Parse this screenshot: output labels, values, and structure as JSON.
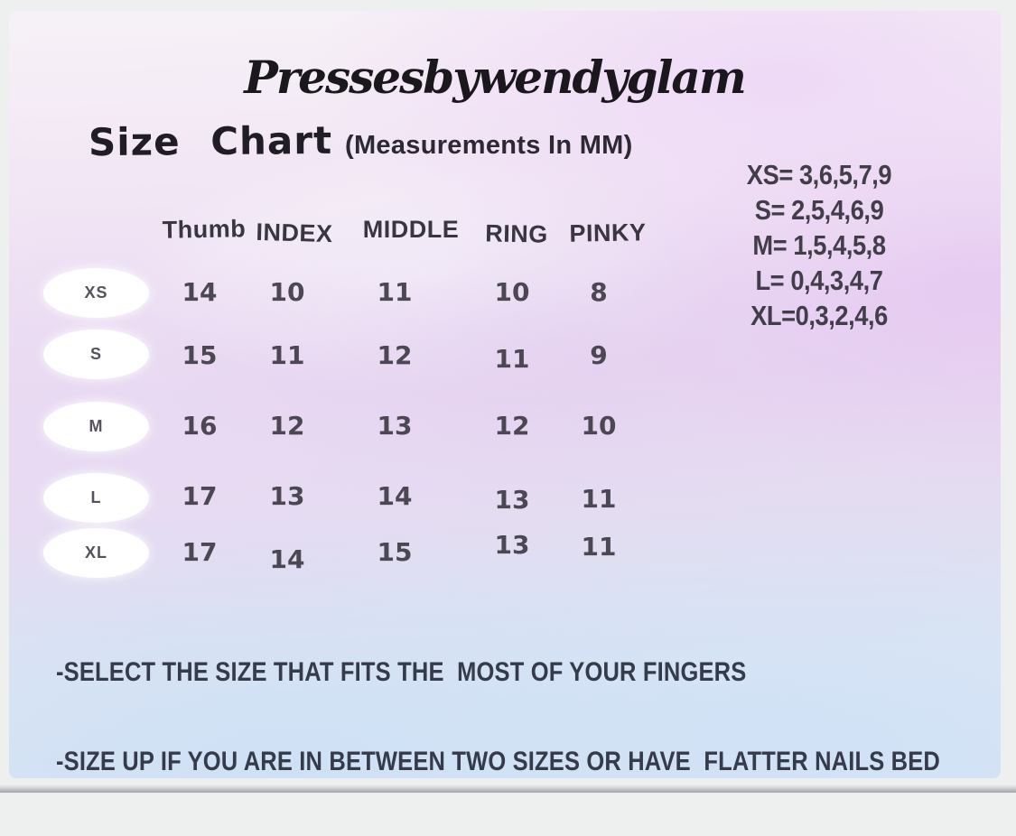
{
  "brand": "Pressesbywendyglam",
  "heading": "Size Chart",
  "subtitle": "(Measurements In MM)",
  "size_codes": [
    "XS= 3,6,5,7,9",
    "S= 2,5,4,6,9",
    "M= 1,5,4,5,8",
    "L= 0,4,3,4,7",
    "XL=0,3,2,4,6"
  ],
  "chart_data": {
    "type": "table",
    "title": "Size Chart (Measurements In MM)",
    "units": "MM",
    "columns": [
      "Thumb",
      "INDEX",
      "MIDDLE",
      "RING",
      "PINKY"
    ],
    "row_labels": [
      "XS",
      "S",
      "M",
      "L",
      "XL"
    ],
    "rows": [
      {
        "size": "XS",
        "values": [
          14,
          10,
          11,
          10,
          8
        ]
      },
      {
        "size": "S",
        "values": [
          15,
          11,
          12,
          11,
          9
        ]
      },
      {
        "size": "M",
        "values": [
          16,
          12,
          13,
          12,
          10
        ]
      },
      {
        "size": "L",
        "values": [
          17,
          13,
          14,
          13,
          11
        ]
      },
      {
        "size": "XL",
        "values": [
          17,
          14,
          15,
          13,
          11
        ]
      }
    ]
  },
  "notes": [
    "-SELECT THE SIZE THAT FITS THE  MOST OF YOUR FINGERS",
    "-SIZE UP IF YOU ARE IN BETWEEN TWO SIZES OR HAVE  FLATTER NAILS BED"
  ],
  "colors": {
    "text_dark": "#1a181d",
    "numbers": "#4c4853",
    "notes_text": "#363b4b",
    "pill_fill": "#ffffff",
    "bg_pink": "#f2e3f4",
    "bg_purple": "#e6d2ef",
    "bg_blue": "#d7e5f4",
    "frame": "#eef0ef"
  }
}
